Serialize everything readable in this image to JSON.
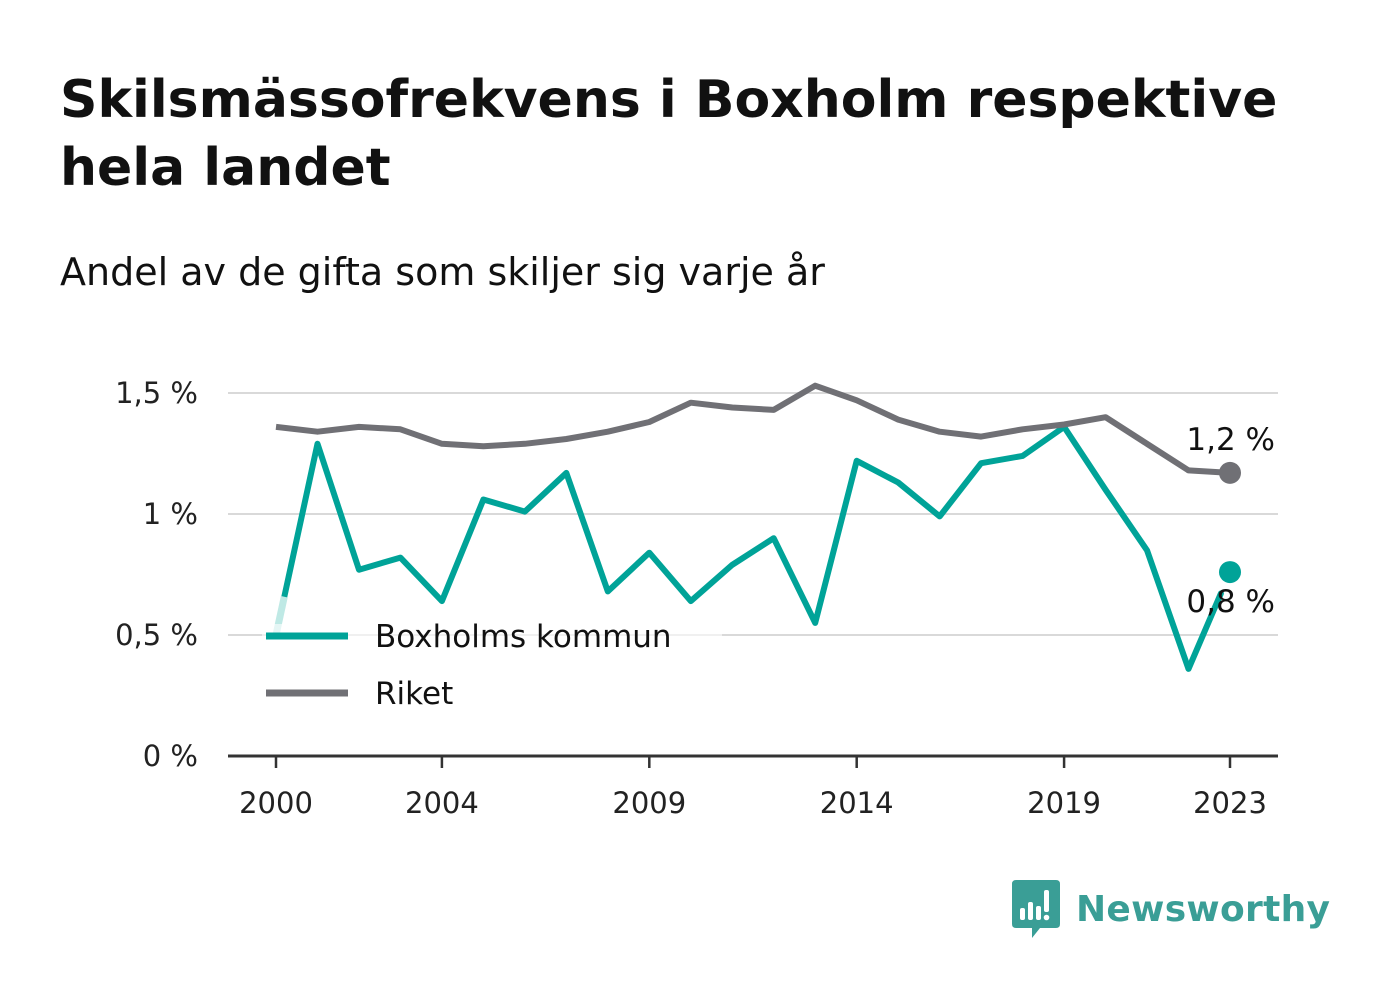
{
  "title": "Skilsmässofrekvens i Boxholm respektive hela landet",
  "subtitle": "Andel av de gifta som skiljer sig varje år",
  "brand": {
    "name": "Newsworthy",
    "color": "#3a9e96",
    "icon": "newsworthy-logo-icon"
  },
  "colors": {
    "boxholm": "#00a398",
    "riket": "#707075",
    "grid": "#d9d9d9",
    "axis": "#333333"
  },
  "chart_data": {
    "type": "line",
    "x": [
      2000,
      2001,
      2002,
      2003,
      2004,
      2005,
      2006,
      2007,
      2008,
      2009,
      2010,
      2011,
      2012,
      2013,
      2014,
      2015,
      2016,
      2017,
      2018,
      2019,
      2020,
      2021,
      2022,
      2023
    ],
    "x_tick_labels": [
      "2000",
      "2004",
      "2009",
      "2014",
      "2019",
      "2023"
    ],
    "y_tick_labels": [
      "0 %",
      "0,5 %",
      "1 %",
      "1,5 %"
    ],
    "ylim": [
      0,
      1.5
    ],
    "grid": true,
    "legend_position": "bottom-left",
    "series": [
      {
        "name": "Boxholms kommun",
        "color": "#00a398",
        "values": [
          0.5,
          1.29,
          0.77,
          0.82,
          0.64,
          1.06,
          1.01,
          1.17,
          0.68,
          0.84,
          0.64,
          0.79,
          0.9,
          0.55,
          1.22,
          1.13,
          0.99,
          1.21,
          1.24,
          1.36,
          1.1,
          0.85,
          0.36,
          0.76
        ],
        "end_label": "0,8 %"
      },
      {
        "name": "Riket",
        "color": "#707075",
        "values": [
          1.36,
          1.34,
          1.36,
          1.35,
          1.29,
          1.28,
          1.29,
          1.31,
          1.34,
          1.38,
          1.46,
          1.44,
          1.43,
          1.53,
          1.47,
          1.39,
          1.34,
          1.32,
          1.35,
          1.37,
          1.4,
          1.29,
          1.18,
          1.17
        ],
        "end_label": "1,2 %"
      }
    ]
  }
}
